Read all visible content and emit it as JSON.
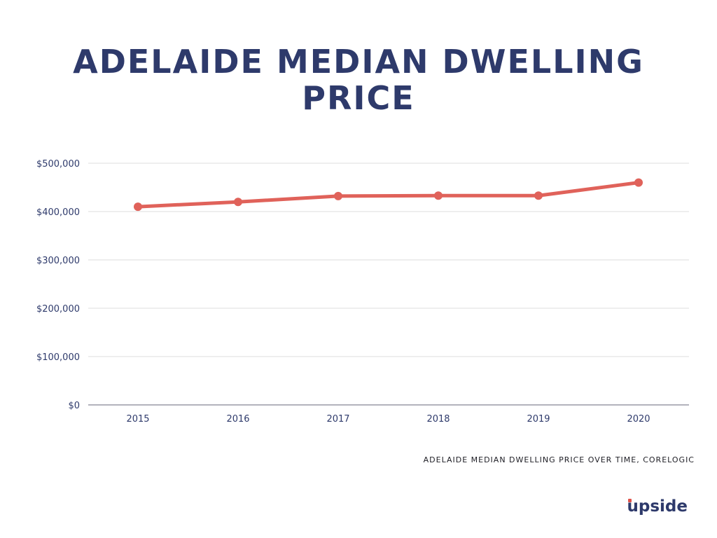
{
  "title_lines": [
    "ADELAIDE MEDIAN DWELLING",
    "PRICE"
  ],
  "source": "ADELAIDE MEDIAN DWELLING PRICE OVER TIME, CORELOGIC",
  "logo": "upside",
  "colors": {
    "title": "#2e3a6b",
    "line": "#e0625a",
    "grid": "#dcdcdc",
    "axis_text": "#2e3a6b",
    "logo_accent": "#e0524a"
  },
  "chart_data": {
    "type": "line",
    "categories": [
      "2015",
      "2016",
      "2017",
      "2018",
      "2019",
      "2020"
    ],
    "series": [
      {
        "values": [
          410000,
          420000,
          432000,
          433000,
          433000,
          460000
        ]
      }
    ],
    "y_ticks": [
      0,
      100000,
      200000,
      300000,
      400000,
      500000
    ],
    "y_tick_labels": [
      "$0",
      "$100,000",
      "$200,000",
      "$300,000",
      "$400,000",
      "$500,000"
    ],
    "ylim": [
      0,
      500000
    ],
    "grid": true,
    "legend": "none"
  }
}
